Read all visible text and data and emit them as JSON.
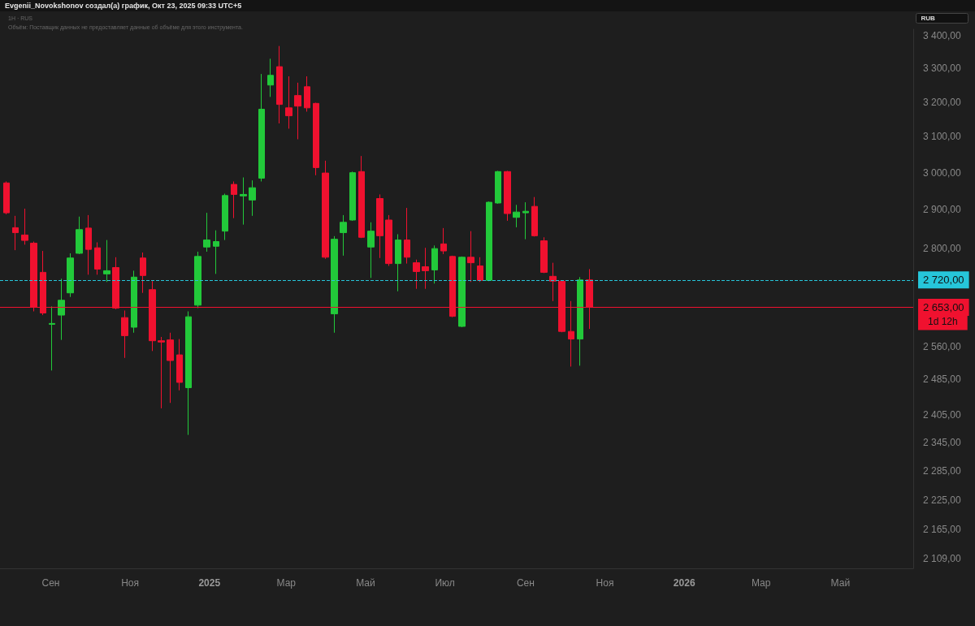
{
  "chart_data": {
    "type": "candlestick",
    "title": "Evgenii_Novokshonov создал(а) график, Окт 23, 2025 09:33 UTC+5",
    "subtitle": "1Н · RUS",
    "annotations": [
      "Объём: Поставщик данных не предоставляет данные об объёме для этого инструмента.",
      "RUB",
      "1d 12h"
    ],
    "x": [
      "2024-07-29",
      "2024-08-05",
      "2024-08-12",
      "2024-08-19",
      "2024-08-26",
      "2024-09-02",
      "2024-09-09",
      "2024-09-16",
      "2024-09-23",
      "2024-09-30",
      "2024-10-07",
      "2024-10-14",
      "2024-10-21",
      "2024-10-28",
      "2024-11-04",
      "2024-11-11",
      "2024-11-18",
      "2024-11-25",
      "2024-12-02",
      "2024-12-09",
      "2024-12-16",
      "2024-12-23",
      "2024-12-30",
      "2025-01-06",
      "2025-01-13",
      "2025-01-20",
      "2025-01-27",
      "2025-02-03",
      "2025-02-10",
      "2025-02-17",
      "2025-02-24",
      "2025-03-03",
      "2025-03-10",
      "2025-03-17",
      "2025-03-24",
      "2025-03-31",
      "2025-04-07",
      "2025-04-14",
      "2025-04-21",
      "2025-04-28",
      "2025-05-05",
      "2025-05-12",
      "2025-05-19",
      "2025-05-26",
      "2025-06-02",
      "2025-06-09",
      "2025-06-16",
      "2025-06-23",
      "2025-06-30",
      "2025-07-07",
      "2025-07-14",
      "2025-07-21",
      "2025-07-28",
      "2025-08-04",
      "2025-08-11",
      "2025-08-18",
      "2025-08-25",
      "2025-09-01",
      "2025-09-08",
      "2025-09-15",
      "2025-09-22",
      "2025-09-29",
      "2025-10-06",
      "2025-10-13",
      "2025-10-20"
    ],
    "ohlc": [
      [
        2972,
        2976,
        2888,
        2892
      ],
      [
        2853,
        2884,
        2795,
        2840
      ],
      [
        2834,
        2903,
        2809,
        2820
      ],
      [
        2813,
        2817,
        2643,
        2653
      ],
      [
        2739,
        2793,
        2634,
        2639
      ],
      [
        2612,
        2655,
        2504,
        2614
      ],
      [
        2634,
        2723,
        2575,
        2670
      ],
      [
        2688,
        2787,
        2678,
        2775
      ],
      [
        2787,
        2882,
        2785,
        2848
      ],
      [
        2852,
        2886,
        2733,
        2797
      ],
      [
        2801,
        2815,
        2733,
        2747
      ],
      [
        2735,
        2821,
        2715,
        2743
      ],
      [
        2751,
        2777,
        2648,
        2651
      ],
      [
        2628,
        2645,
        2533,
        2585
      ],
      [
        2605,
        2743,
        2592,
        2727
      ],
      [
        2775,
        2789,
        2688,
        2731
      ],
      [
        2696,
        2717,
        2549,
        2573
      ],
      [
        2573,
        2582,
        2419,
        2570
      ],
      [
        2575,
        2592,
        2431,
        2527
      ],
      [
        2540,
        2577,
        2459,
        2477
      ],
      [
        2465,
        2643,
        2361,
        2630
      ],
      [
        2658,
        2791,
        2651,
        2779
      ],
      [
        2803,
        2892,
        2791,
        2821
      ],
      [
        2805,
        2846,
        2735,
        2817
      ],
      [
        2844,
        2943,
        2821,
        2938
      ],
      [
        2968,
        2976,
        2878,
        2941
      ],
      [
        2937,
        2987,
        2861,
        2941
      ],
      [
        2926,
        2979,
        2884,
        2959
      ],
      [
        2985,
        3283,
        2976,
        3179
      ],
      [
        3250,
        3329,
        3215,
        3279
      ],
      [
        3305,
        3368,
        3138,
        3193
      ],
      [
        3183,
        3276,
        3123,
        3160
      ],
      [
        3219,
        3257,
        3093,
        3188
      ],
      [
        3245,
        3276,
        3172,
        3183
      ],
      [
        3196,
        3198,
        2993,
        3014
      ],
      [
        2999,
        3033,
        2773,
        2777
      ],
      [
        2637,
        2831,
        2592,
        2823
      ],
      [
        2840,
        2886,
        2781,
        2867
      ],
      [
        2873,
        3003,
        2871,
        3000
      ],
      [
        3003,
        3046,
        2826,
        2828
      ],
      [
        2803,
        2867,
        2725,
        2844
      ],
      [
        2930,
        2941,
        2775,
        2832
      ],
      [
        2873,
        2886,
        2755,
        2761
      ],
      [
        2761,
        2836,
        2692,
        2821
      ],
      [
        2821,
        2905,
        2761,
        2777
      ],
      [
        2763,
        2771,
        2698,
        2741
      ],
      [
        2753,
        2801,
        2698,
        2743
      ],
      [
        2745,
        2807,
        2711,
        2799
      ],
      [
        2811,
        2852,
        2785,
        2793
      ],
      [
        2779,
        2781,
        2629,
        2631
      ],
      [
        2607,
        2779,
        2605,
        2777
      ],
      [
        2777,
        2844,
        2715,
        2763
      ],
      [
        2755,
        2777,
        2715,
        2719
      ],
      [
        2719,
        2922,
        2717,
        2920
      ],
      [
        2918,
        3005,
        2916,
        3003
      ],
      [
        3003,
        3005,
        2871,
        2890
      ],
      [
        2880,
        2913,
        2854,
        2894
      ],
      [
        2892,
        2920,
        2823,
        2896
      ],
      [
        2909,
        2934,
        2830,
        2832
      ],
      [
        2819,
        2828,
        2737,
        2739
      ],
      [
        2729,
        2763,
        2668,
        2717
      ],
      [
        2717,
        2719,
        2593,
        2595
      ],
      [
        2595,
        2668,
        2513,
        2577
      ],
      [
        2577,
        2727,
        2515,
        2720
      ],
      [
        2720,
        2747,
        2601,
        2653
      ]
    ],
    "colors": [
      "#f0112f",
      "#f0112f",
      "#f0112f",
      "#f0112f",
      "#f0112f",
      "#22c93a",
      "#22c93a",
      "#22c93a",
      "#22c93a",
      "#f0112f",
      "#f0112f",
      "#22c93a",
      "#f0112f",
      "#f0112f",
      "#22c93a",
      "#f0112f",
      "#f0112f",
      "#f0112f",
      "#f0112f",
      "#f0112f",
      "#22c93a",
      "#22c93a",
      "#22c93a",
      "#22c93a",
      "#22c93a",
      "#f0112f",
      "#22c93a",
      "#22c93a",
      "#22c93a",
      "#22c93a",
      "#f0112f",
      "#f0112f",
      "#f0112f",
      "#f0112f",
      "#f0112f",
      "#f0112f",
      "#22c93a",
      "#22c93a",
      "#22c93a",
      "#f0112f",
      "#22c93a",
      "#f0112f",
      "#f0112f",
      "#22c93a",
      "#f0112f",
      "#f0112f",
      "#f0112f",
      "#22c93a",
      "#f0112f",
      "#f0112f",
      "#22c93a",
      "#f0112f",
      "#f0112f",
      "#22c93a",
      "#22c93a",
      "#f0112f",
      "#22c93a",
      "#22c93a",
      "#f0112f",
      "#f0112f",
      "#f0112f",
      "#f0112f",
      "#f0112f",
      "#22c93a",
      "#f0112f"
    ],
    "xlim": [
      "2024-07-24",
      "2026-06-26"
    ],
    "xticks": [
      {
        "value": "2024-09-01",
        "label": "Сен"
      },
      {
        "value": "2024-11-01",
        "label": "Ноя"
      },
      {
        "value": "2025-01-01",
        "label": "2025"
      },
      {
        "value": "2025-03-01",
        "label": "Мар"
      },
      {
        "value": "2025-05-01",
        "label": "Май"
      },
      {
        "value": "2025-07-01",
        "label": "Июл"
      },
      {
        "value": "2025-09-01",
        "label": "Сен"
      },
      {
        "value": "2025-11-01",
        "label": "Ноя"
      },
      {
        "value": "2026-01-01",
        "label": "2026"
      },
      {
        "value": "2026-03-01",
        "label": "Мар"
      },
      {
        "value": "2026-05-01",
        "label": "Май"
      }
    ],
    "ylim": [
      2090,
      3420
    ],
    "log": true,
    "yticks": [
      {
        "value": 2109,
        "label": "2 109,00"
      },
      {
        "value": 2165,
        "label": "2 165,00"
      },
      {
        "value": 2225,
        "label": "2 225,00"
      },
      {
        "value": 2285,
        "label": "2 285,00"
      },
      {
        "value": 2345,
        "label": "2 345,00"
      },
      {
        "value": 2405,
        "label": "2 405,00"
      },
      {
        "value": 2485,
        "label": "2 485,00"
      },
      {
        "value": 2560,
        "label": "2 560,00"
      },
      {
        "value": 2800,
        "label": "2 800,00"
      },
      {
        "value": 2900,
        "label": "2 900,00"
      },
      {
        "value": 3000,
        "label": "3 000,00"
      },
      {
        "value": 3100,
        "label": "3 100,00"
      },
      {
        "value": 3200,
        "label": "3 200,00"
      },
      {
        "value": 3300,
        "label": "3 300,00"
      },
      {
        "value": 3400,
        "label": "3 400,00"
      }
    ],
    "ref_lines": [
      {
        "axis": "y",
        "value": 2720,
        "label": "2 720,00",
        "color": "#26c6da",
        "line_style": "dashed"
      },
      {
        "axis": "y",
        "value": 2653,
        "label": "2 653,00",
        "color": "#f0112f",
        "line_style": "solid"
      }
    ]
  }
}
